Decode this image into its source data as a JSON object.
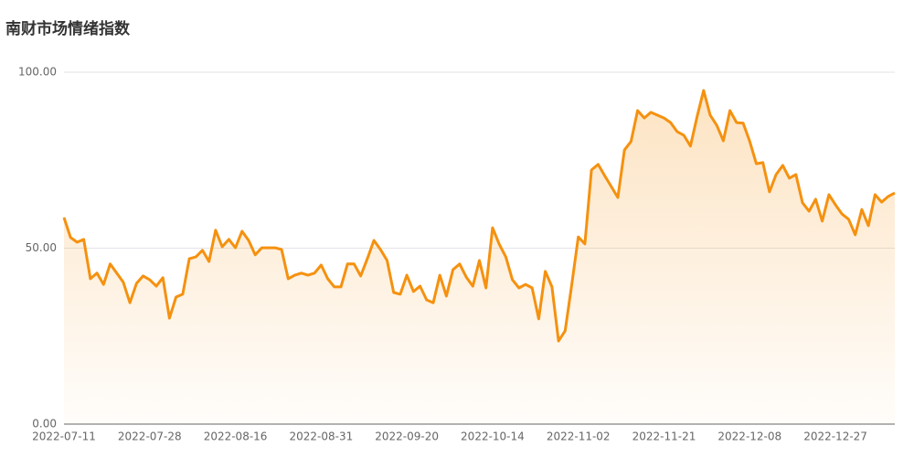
{
  "chart_data": {
    "type": "line",
    "title": "南财市场情绪指数",
    "categories": [
      "2022-07-11",
      null,
      null,
      null,
      null,
      null,
      null,
      null,
      null,
      null,
      null,
      null,
      null,
      "2022-07-28",
      null,
      null,
      null,
      null,
      null,
      null,
      null,
      null,
      null,
      null,
      null,
      null,
      "2022-08-16",
      null,
      null,
      null,
      null,
      null,
      null,
      null,
      null,
      null,
      null,
      null,
      null,
      "2022-08-31",
      null,
      null,
      null,
      null,
      null,
      null,
      null,
      null,
      null,
      null,
      null,
      null,
      "2022-09-20",
      null,
      null,
      null,
      null,
      null,
      null,
      null,
      null,
      null,
      null,
      null,
      null,
      "2022-10-14",
      null,
      null,
      null,
      null,
      null,
      null,
      null,
      null,
      null,
      null,
      null,
      null,
      "2022-11-02",
      null,
      null,
      null,
      null,
      null,
      null,
      null,
      null,
      null,
      null,
      null,
      null,
      "2022-11-21",
      null,
      null,
      null,
      null,
      null,
      null,
      null,
      null,
      null,
      null,
      null,
      null,
      "2022-12-08",
      null,
      null,
      null,
      null,
      null,
      null,
      null,
      null,
      null,
      null,
      null,
      null,
      "2022-12-27",
      null,
      null,
      null,
      null,
      null,
      null,
      null,
      null,
      null
    ],
    "values": [
      58.7,
      53,
      51.7,
      52.5,
      41.3,
      42.9,
      39.7,
      45.5,
      42.9,
      40.3,
      34.5,
      40,
      42.1,
      41,
      39.2,
      41.6,
      30.1,
      36.1,
      36.9,
      47,
      47.5,
      49.4,
      46.2,
      55.1,
      50.4,
      52.5,
      50.1,
      54.8,
      52.2,
      48.1,
      50.1,
      50.1,
      50.1,
      49.6,
      41.3,
      42.3,
      42.9,
      42.3,
      42.9,
      45.2,
      41.3,
      39,
      39,
      45.5,
      45.5,
      42.1,
      47,
      52.2,
      49.6,
      46.5,
      37.4,
      36.9,
      42.3,
      37.7,
      39.2,
      35.3,
      34.5,
      42.3,
      36.4,
      43.9,
      45.5,
      41.8,
      39.2,
      46.5,
      38.7,
      55.8,
      51.2,
      47.5,
      41,
      38.7,
      39.7,
      38.7,
      29.9,
      43.4,
      39,
      23.6,
      26.5,
      39.5,
      53.2,
      51.2,
      72.2,
      73.8,
      70.6,
      67.5,
      64.4,
      77.9,
      80.3,
      89.1,
      87,
      88.6,
      87.8,
      87,
      85.7,
      83.1,
      82.1,
      79,
      87.3,
      94.8,
      87.8,
      84.9,
      80.5,
      89.1,
      85.7,
      85.5,
      80.3,
      74,
      74.3,
      66,
      70.9,
      73.5,
      69.9,
      70.9,
      62.9,
      60.5,
      63.9,
      57.7,
      65.2,
      62.3,
      59.7,
      58.2,
      53.8,
      61,
      56.4,
      65.2,
      63.1,
      64.7,
      65.7
    ],
    "color": "#f5910f",
    "ylim": [
      0,
      100
    ],
    "yticks": [
      {
        "value": 0,
        "label": "0.00"
      },
      {
        "value": 50,
        "label": "50.00"
      },
      {
        "value": 100,
        "label": "100.00"
      }
    ],
    "grid": true
  }
}
